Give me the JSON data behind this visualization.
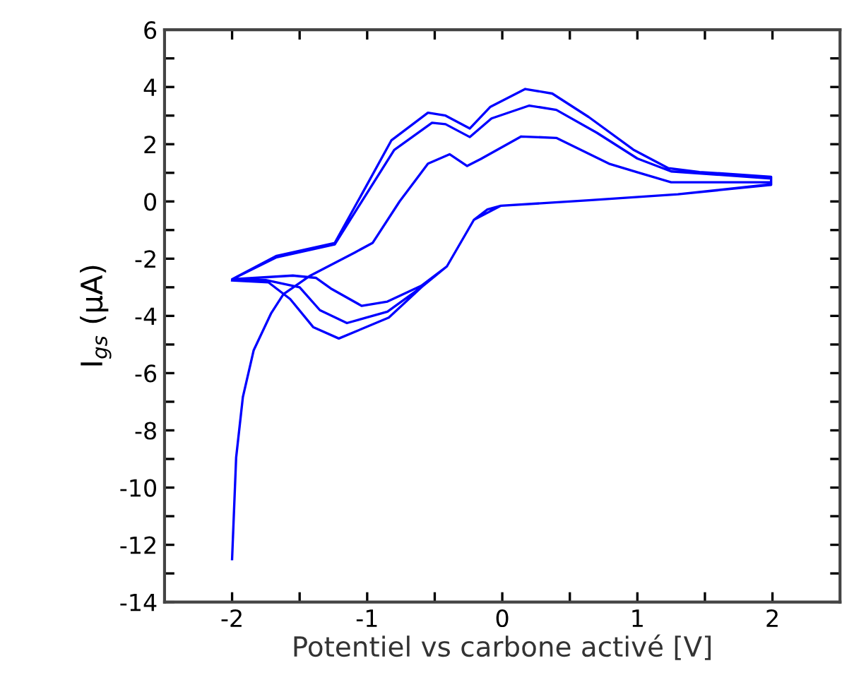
{
  "chart_data": {
    "type": "line",
    "xlabel": "Potentiel vs carbone activé [V]",
    "ylabel": "I$_{gs}$ (µA)",
    "series": [
      {
        "color": "#0000ff",
        "x": [
          -2.0,
          -1.97,
          -1.92,
          -1.84,
          -1.71,
          -1.62,
          -1.42,
          -1.09,
          -0.96,
          -0.76,
          -0.55,
          -0.39,
          -0.26,
          -0.16,
          0.14,
          0.4,
          0.79,
          1.02,
          1.25,
          1.99,
          1.99,
          1.3,
          0.64,
          -0.01,
          -0.11,
          -0.21,
          -0.41,
          -0.6,
          -0.85,
          -1.04,
          -1.27,
          -1.38,
          -1.55,
          -2.0,
          -1.67,
          -1.24,
          -1.0,
          -0.8,
          -0.52,
          -0.42,
          -0.24,
          -0.08,
          0.2,
          0.4,
          0.7,
          1.0,
          1.25,
          1.99,
          1.99,
          1.3,
          0.64,
          -0.01,
          -0.21,
          -0.41,
          -0.6,
          -0.85,
          -1.15,
          -1.35,
          -1.5,
          -1.75,
          -2.0,
          -1.67,
          -1.24,
          -1.01,
          -0.82,
          -0.55,
          -0.42,
          -0.24,
          -0.09,
          0.17,
          0.37,
          0.64,
          0.97,
          1.23,
          1.46,
          1.99,
          1.99,
          1.3,
          0.64,
          -0.01,
          -0.11,
          -0.21,
          -0.41,
          -0.58,
          -0.84,
          -1.21,
          -1.4,
          -1.57,
          -1.73,
          -2.0
        ],
        "values": [
          -12.5,
          -8.95,
          -6.83,
          -5.2,
          -3.9,
          -3.24,
          -2.59,
          -1.78,
          -1.45,
          0.0,
          1.32,
          1.65,
          1.24,
          1.48,
          2.27,
          2.22,
          1.32,
          0.99,
          0.67,
          0.67,
          0.58,
          0.25,
          0.04,
          -0.15,
          -0.28,
          -0.64,
          -2.27,
          -2.95,
          -3.5,
          -3.65,
          -3.04,
          -2.67,
          -2.59,
          -2.72,
          -1.95,
          -1.5,
          0.3,
          1.8,
          2.75,
          2.7,
          2.25,
          2.9,
          3.35,
          3.2,
          2.4,
          1.5,
          1.05,
          0.8,
          0.6,
          0.25,
          0.04,
          -0.15,
          -0.64,
          -2.27,
          -3.0,
          -3.85,
          -4.25,
          -3.8,
          -3.0,
          -2.75,
          -2.72,
          -1.9,
          -1.45,
          0.51,
          2.14,
          3.1,
          3.0,
          2.55,
          3.3,
          3.93,
          3.77,
          2.95,
          1.81,
          1.16,
          1.03,
          0.86,
          0.58,
          0.25,
          0.04,
          -0.15,
          -0.28,
          -0.64,
          -2.27,
          -2.92,
          -4.06,
          -4.79,
          -4.39,
          -3.41,
          -2.83,
          -2.76
        ]
      }
    ],
    "xlim": [
      -2.5,
      2.5
    ],
    "ylim": [
      -14,
      6
    ],
    "xticks": [
      -2,
      {
        "value": -1.5,
        "label": null
      },
      -1,
      {
        "value": -0.5,
        "label": null
      },
      0,
      {
        "value": 0.5,
        "label": null
      },
      1,
      {
        "value": 1.5,
        "label": null
      },
      2
    ],
    "yticks": [
      -14,
      {
        "value": -13,
        "label": null
      },
      -12,
      {
        "value": -11,
        "label": null
      },
      -10,
      {
        "value": -9,
        "label": null
      },
      -8,
      {
        "value": -7,
        "label": null
      },
      -6,
      {
        "value": -5,
        "label": null
      },
      -4,
      {
        "value": -3,
        "label": null
      },
      -2,
      {
        "value": -1,
        "label": null
      },
      0,
      {
        "value": 1,
        "label": null
      },
      2,
      {
        "value": 3,
        "label": null
      },
      4,
      {
        "value": 5,
        "label": null
      },
      6
    ],
    "grid": false,
    "legend": false,
    "marker": "none",
    "line_style": "solid"
  }
}
